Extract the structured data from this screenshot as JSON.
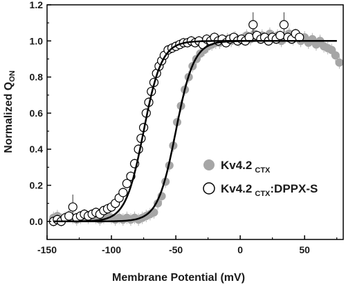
{
  "chart_data": {
    "type": "scatter",
    "xlabel": "Membrane Potential (mV)",
    "ylabel_main": "Normalized Q",
    "ylabel_sub": "ON",
    "xlim": [
      -150,
      80
    ],
    "ylim": [
      -0.1,
      1.2
    ],
    "xticks": [
      -150,
      -100,
      -50,
      0,
      50
    ],
    "xtick_labels": [
      "-150",
      "-100",
      "-50",
      "0",
      "50"
    ],
    "yticks": [
      0.0,
      0.2,
      0.4,
      0.6,
      0.8,
      1.0,
      1.2
    ],
    "ytick_labels": [
      "0.0",
      "0.2",
      "0.4",
      "0.6",
      "0.8",
      "1.0",
      "1.2"
    ],
    "grid": false,
    "legend_position": "middle-right",
    "series": [
      {
        "name_main": "Kv4.2",
        "name_sub": "CTX",
        "name_suffix": "",
        "marker": "filled-circle",
        "color": "#a6a6a6",
        "fit": {
          "v_half": -50,
          "slope": 7
        },
        "points": [
          [
            -145,
            0.02
          ],
          [
            -142,
            0.03
          ],
          [
            -139,
            0.01
          ],
          [
            -136,
            0.02
          ],
          [
            -133,
            0.03
          ],
          [
            -130,
            0.02
          ],
          [
            -127,
            0.01
          ],
          [
            -124,
            0.02
          ],
          [
            -121,
            0.03
          ],
          [
            -118,
            0.02
          ],
          [
            -115,
            0.03
          ],
          [
            -112,
            0.02
          ],
          [
            -109,
            0.01
          ],
          [
            -106,
            0.02
          ],
          [
            -103,
            0.03
          ],
          [
            -100,
            0.02
          ],
          [
            -97,
            0.01
          ],
          [
            -94,
            0.02
          ],
          [
            -91,
            0.01
          ],
          [
            -88,
            0.02
          ],
          [
            -85,
            0.01
          ],
          [
            -82,
            0.02
          ],
          [
            -79,
            0.01
          ],
          [
            -76,
            0.02
          ],
          [
            -73,
            0.03
          ],
          [
            -70,
            0.04
          ],
          [
            -67,
            0.05
          ],
          [
            -64,
            0.1
          ],
          [
            -61,
            0.14
          ],
          [
            -58,
            0.22
          ],
          [
            -55,
            0.31
          ],
          [
            -52,
            0.42
          ],
          [
            -49,
            0.55
          ],
          [
            -46,
            0.64
          ],
          [
            -43,
            0.73
          ],
          [
            -40,
            0.8
          ],
          [
            -37,
            0.86
          ],
          [
            -34,
            0.9
          ],
          [
            -31,
            0.93
          ],
          [
            -28,
            0.95
          ],
          [
            -25,
            0.97
          ],
          [
            -22,
            0.98
          ],
          [
            -19,
            0.99
          ],
          [
            -16,
            0.99
          ],
          [
            -13,
            1.0
          ],
          [
            -10,
            1.01
          ],
          [
            -7,
            1.0
          ],
          [
            -4,
            1.02
          ],
          [
            -1,
            1.0
          ],
          [
            2,
            1.01
          ],
          [
            5,
            1.03
          ],
          [
            8,
            1.01
          ],
          [
            11,
            1.04
          ],
          [
            14,
            1.02
          ],
          [
            17,
            1.03
          ],
          [
            20,
            1.01
          ],
          [
            23,
            1.04
          ],
          [
            26,
            1.02
          ],
          [
            29,
            1.03
          ],
          [
            32,
            1.0
          ],
          [
            35,
            1.02
          ],
          [
            38,
            1.04
          ],
          [
            41,
            1.01
          ],
          [
            44,
            1.03
          ],
          [
            47,
            1.0
          ],
          [
            50,
            1.02
          ],
          [
            53,
            0.99
          ],
          [
            56,
            1.01
          ],
          [
            59,
            0.98
          ],
          [
            62,
            1.0
          ],
          [
            65,
            0.97
          ],
          [
            68,
            0.96
          ],
          [
            71,
            0.95
          ],
          [
            74,
            0.92
          ],
          [
            77,
            0.88
          ]
        ]
      },
      {
        "name_main": "Kv4.2",
        "name_sub": "CTX",
        "name_suffix": ":DPPX-S",
        "marker": "open-circle",
        "color": "#000000",
        "fit": {
          "v_half": -75,
          "slope": 7
        },
        "points": [
          [
            -145,
            0.0
          ],
          [
            -142,
            0.01
          ],
          [
            -139,
            0.0
          ],
          [
            -136,
            0.02
          ],
          [
            -133,
            0.03
          ],
          [
            -130,
            0.08
          ],
          [
            -127,
            0.02
          ],
          [
            -124,
            0.03
          ],
          [
            -121,
            0.04
          ],
          [
            -118,
            0.03
          ],
          [
            -115,
            0.04
          ],
          [
            -112,
            0.05
          ],
          [
            -109,
            0.04
          ],
          [
            -106,
            0.06
          ],
          [
            -103,
            0.07
          ],
          [
            -100,
            0.08
          ],
          [
            -97,
            0.1
          ],
          [
            -94,
            0.13
          ],
          [
            -91,
            0.16
          ],
          [
            -88,
            0.21
          ],
          [
            -85,
            0.25
          ],
          [
            -82,
            0.32
          ],
          [
            -79,
            0.4
          ],
          [
            -77,
            0.46
          ],
          [
            -75,
            0.52
          ],
          [
            -73,
            0.6
          ],
          [
            -71,
            0.66
          ],
          [
            -69,
            0.72
          ],
          [
            -67,
            0.77
          ],
          [
            -65,
            0.82
          ],
          [
            -63,
            0.86
          ],
          [
            -61,
            0.89
          ],
          [
            -59,
            0.92
          ],
          [
            -56,
            0.95
          ],
          [
            -53,
            0.96
          ],
          [
            -50,
            0.97
          ],
          [
            -47,
            0.98
          ],
          [
            -44,
            0.99
          ],
          [
            -41,
            0.99
          ],
          [
            -38,
            1.0
          ],
          [
            -35,
            0.99
          ],
          [
            -32,
            1.0
          ],
          [
            -29,
            0.98
          ],
          [
            -26,
            1.01
          ],
          [
            -23,
            1.0
          ],
          [
            -20,
            1.02
          ],
          [
            -17,
            1.0
          ],
          [
            -14,
            1.01
          ],
          [
            -11,
            0.99
          ],
          [
            -8,
            1.01
          ],
          [
            -5,
            1.02
          ],
          [
            -2,
            1.0
          ],
          [
            1,
            1.01
          ],
          [
            4,
            1.0
          ],
          [
            7,
            1.02
          ],
          [
            10,
            1.09
          ],
          [
            13,
            1.03
          ],
          [
            16,
            1.01
          ],
          [
            19,
            1.02
          ],
          [
            22,
            1.0
          ],
          [
            25,
            1.02
          ],
          [
            28,
            1.01
          ],
          [
            31,
            1.03
          ],
          [
            34,
            1.09
          ],
          [
            37,
            1.02
          ],
          [
            40,
            1.01
          ],
          [
            43,
            1.04
          ],
          [
            46,
            1.02
          ]
        ]
      }
    ]
  }
}
